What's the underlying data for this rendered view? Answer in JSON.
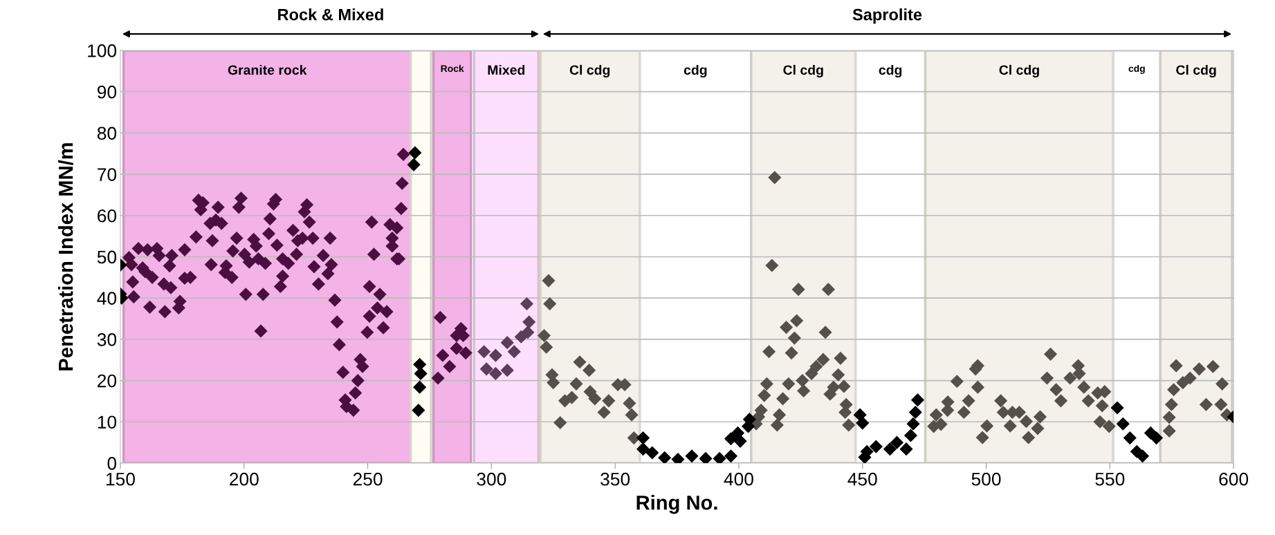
{
  "chart_data": {
    "type": "scatter",
    "xlabel": "Ring No.",
    "ylabel": "Penetration Index MN/m",
    "xlim": [
      150,
      600
    ],
    "xticks": [
      150,
      200,
      250,
      300,
      350,
      400,
      450,
      500,
      550,
      600
    ],
    "ylim": [
      0,
      100
    ],
    "yticks": [
      0,
      10,
      20,
      30,
      40,
      50,
      60,
      70,
      80,
      90,
      100
    ],
    "grid": "y",
    "legend": false,
    "marker": "diamond",
    "annotations": [
      "Rock & Mixed",
      "Saprolite"
    ],
    "ref_lines": [
      {
        "axis": "x",
        "value": 320,
        "label": null,
        "color": "#ddd3bd"
      }
    ],
    "bands": [
      {
        "axis": "x",
        "from": 151.3,
        "to": 267.4,
        "label": "Granite rock",
        "color": "#f3b3e6"
      },
      {
        "axis": "x",
        "from": 267.4,
        "to": 275.6,
        "label": null,
        "color": "#fffcf4"
      },
      {
        "axis": "x",
        "from": 276.6,
        "to": 291.7,
        "label": "Rock",
        "color": "#f3b3e6"
      },
      {
        "axis": "x",
        "from": 293,
        "to": 319,
        "label": "Mixed",
        "color": "#fde0fd"
      },
      {
        "axis": "x",
        "from": 319.6,
        "to": 360,
        "label": "Cl cdg",
        "color": "#f4f1ea"
      },
      {
        "axis": "x",
        "from": 360,
        "to": 405,
        "label": "cdg",
        "color": "#ffffff"
      },
      {
        "axis": "x",
        "from": 405,
        "to": 447.2,
        "label": "Cl cdg",
        "color": "#f4f1ea"
      },
      {
        "axis": "x",
        "from": 447.2,
        "to": 475.4,
        "label": "cdg",
        "color": "#ffffff"
      },
      {
        "axis": "x",
        "from": 475.4,
        "to": 551.4,
        "label": "Cl cdg",
        "color": "#f4f1ea"
      },
      {
        "axis": "x",
        "from": 551.4,
        "to": 570.4,
        "label": "cdg",
        "color": "#ffffff"
      },
      {
        "axis": "x",
        "from": 570.4,
        "to": 599.4,
        "label": "Cl cdg",
        "color": "#f4f1ea"
      }
    ],
    "series": [
      {
        "color": "#4a0f40",
        "x": [
          153.5,
          157.3,
          161,
          164.8,
          165.7,
          170.8,
          176,
          154.5,
          159,
          160,
          169.9,
          155,
          162.9,
          167.6,
          170.4,
          176,
          178.3,
          155.4,
          161.9,
          168,
          173.6,
          174.1,
          180.6,
          181.6,
          183.4,
          182.5,
          189.5,
          188.6,
          186.3,
          190.9,
          187.2,
          186.7,
          192.8,
          192.3,
          195.1,
          198.8,
          197.9,
          197,
          195.5,
          200.2,
          203.9,
          204.9,
          202.1,
          205.8,
          208.6,
          200.7,
          207.7,
          206.8,
          212.8,
          211.9,
          210.5,
          210,
          213.3,
          215.6,
          217.9,
          215.6,
          214.7,
          219.8,
          221.7,
          223.6,
          221.2,
          225.4,
          224.4,
          226.4,
          227.8,
          234.8,
          228.3,
          232,
          235.3,
          233.9,
          230.1,
          236.7,
          237.6,
          238.5,
          240,
          247,
          247.9,
          246,
          245,
          240.9,
          241.4,
          244.2,
          251.6,
          252.5,
          250.7,
          254.9,
          253.9,
          257.7,
          250.7,
          256.3,
          249.8,
          259,
          261.8,
          259.9,
          259.9,
          261.8,
          264.4,
          263.9,
          263.5,
          262.6,
          279.3,
          287.7,
          285.9,
          288.6,
          285.9,
          280.3,
          283.1,
          278.4,
          289.6
        ],
        "values": [
          49.8,
          52,
          51.7,
          52,
          50.3,
          50.3,
          51.7,
          48.1,
          47.3,
          46.4,
          47.8,
          43.9,
          45,
          43.4,
          42.5,
          44.8,
          45,
          40.3,
          37.8,
          36.7,
          37.6,
          39.2,
          54.8,
          63.7,
          63.1,
          61.4,
          62,
          58.9,
          58.1,
          58.1,
          53.9,
          48.1,
          47.8,
          46.2,
          45,
          64.2,
          62,
          54.5,
          51.4,
          50.6,
          54.2,
          52.6,
          48.7,
          49.5,
          48.4,
          40.9,
          40.9,
          32,
          63.9,
          62.8,
          59.2,
          55.6,
          52.8,
          49.5,
          48.4,
          45.3,
          42.8,
          56.4,
          53.9,
          54.5,
          50.6,
          62.6,
          60.9,
          58.4,
          54.5,
          54.5,
          47.6,
          50.3,
          48.1,
          45.9,
          43.4,
          39.5,
          34.2,
          28.7,
          22,
          25.1,
          23.4,
          20,
          17,
          15.3,
          13.7,
          12.8,
          58.4,
          50.6,
          42.8,
          40.9,
          37.6,
          36.7,
          35.6,
          32.8,
          31.7,
          57.8,
          57,
          54.5,
          52.6,
          49.5,
          74.8,
          67.8,
          61.7,
          49.5,
          35.3,
          32.6,
          30.9,
          30.9,
          27.8,
          26.1,
          23.4,
          20.6,
          26.7
        ]
      },
      {
        "color": "#5c3d5a",
        "x": [
          297,
          298,
          301.7,
          306.4,
          301.7,
          306.4,
          309.2,
          312,
          314.7,
          315.2,
          314.3
        ],
        "values": [
          27,
          22.8,
          21.7,
          22.5,
          26.1,
          29.2,
          27,
          30.6,
          31.7,
          34.2,
          38.6
        ]
      },
      {
        "color": "#555049",
        "x": [
          323.1,
          323.6,
          321.3,
          322.2,
          324.5,
          325,
          327.8,
          329.7,
          332.5,
          334.3,
          335.7,
          339.5,
          339.9,
          341.8,
          345.5,
          347.4,
          351.1,
          353.9,
          355.8,
          356.7,
          357.6,
          409,
          408,
          407,
          414.5,
          413.4,
          424.1,
          436.2,
          419.2,
          423.4,
          422.5,
          435,
          412.2,
          421.3,
          411.3,
          410.3,
          417.8,
          416.4,
          415.5,
          420.1,
          425.7,
          426.2,
          429.4,
          431.3,
          434.1,
          441.1,
          440.2,
          442.5,
          438.3,
          436.9,
          443.4,
          443,
          444.4,
          478.8,
          479.8,
          484.4,
          481.7,
          484.5,
          488.2,
          496.6,
          495.7,
          496.6,
          492.9,
          491,
          498.5,
          500.3,
          505.9,
          506.9,
          509.7,
          510.6,
          513.4,
          516.2,
          517.1,
          520.8,
          521.8,
          526,
          524.6,
          528.3,
          530.2,
          533.9,
          537.2,
          537.6,
          539.5,
          541.3,
          545.1,
          547.9,
          546.9,
          546,
          549.7,
          574,
          574,
          574.9,
          576.8,
          575.8,
          579.5,
          582.4,
          586.1,
          591.7,
          588.9,
          594.9,
          595.4,
          597.3
        ],
        "values": [
          44.2,
          38.6,
          30.9,
          28.1,
          21.4,
          19.5,
          9.8,
          15.1,
          15.9,
          19.2,
          24.5,
          22.5,
          17.3,
          15.6,
          12.3,
          15.1,
          19,
          19,
          14.5,
          11.7,
          6.1,
          12.8,
          11.2,
          9.5,
          69.2,
          47.9,
          42.1,
          42.1,
          32.9,
          34.5,
          30.3,
          31.7,
          27,
          26.7,
          19.2,
          16.4,
          15.6,
          11.7,
          9.2,
          19.2,
          20,
          17.5,
          21.7,
          23.4,
          25.1,
          25.4,
          21.4,
          18.6,
          18.4,
          16.7,
          14.2,
          12.3,
          9.2,
          8.9,
          11.7,
          12.8,
          9.4,
          14.8,
          19.8,
          23.6,
          22.8,
          18.4,
          15.1,
          12.3,
          6.2,
          9,
          15.1,
          12.3,
          9,
          12.3,
          12.3,
          10.1,
          6.2,
          8.4,
          11.2,
          26.4,
          20.6,
          17.8,
          15.1,
          20.6,
          23.6,
          21.7,
          18.4,
          15.1,
          17,
          17.3,
          13.9,
          10,
          8.9,
          7.8,
          11.1,
          14.2,
          23.6,
          17.8,
          19.5,
          20.6,
          22.8,
          23.4,
          14.2,
          14.2,
          19.2,
          11.7
        ]
      },
      {
        "color": "#000000",
        "x": [
          150,
          150,
          150.5,
          269.1,
          268.6,
          271,
          271.4,
          271,
          270.5,
          361.3,
          361.3,
          365,
          370,
          375.4,
          381,
          386.6,
          392.2,
          396.8,
          396.8,
          400.6,
          399.6,
          403.8,
          404.3,
          450,
          449,
          451.8,
          450.9,
          455.5,
          461.1,
          463.9,
          467.7,
          469.5,
          470.5,
          471.4,
          472.3,
          553,
          555.3,
          558.1,
          560.9,
          563.2,
          566.5,
          568.8,
          600
        ],
        "values": [
          48,
          41,
          40,
          75.2,
          72.3,
          23.9,
          21.7,
          18.4,
          12.8,
          6.1,
          3.4,
          2.5,
          1.3,
          0.9,
          1.7,
          1.1,
          1.1,
          1.7,
          5.9,
          5.3,
          7.3,
          8.9,
          10.6,
          9.7,
          11.7,
          2.8,
          1.4,
          4,
          3.4,
          5,
          3.4,
          6.7,
          9.5,
          12.3,
          15.3,
          13.4,
          9.5,
          6.1,
          2.8,
          1.7,
          7.3,
          6.1,
          11.2
        ]
      }
    ]
  }
}
